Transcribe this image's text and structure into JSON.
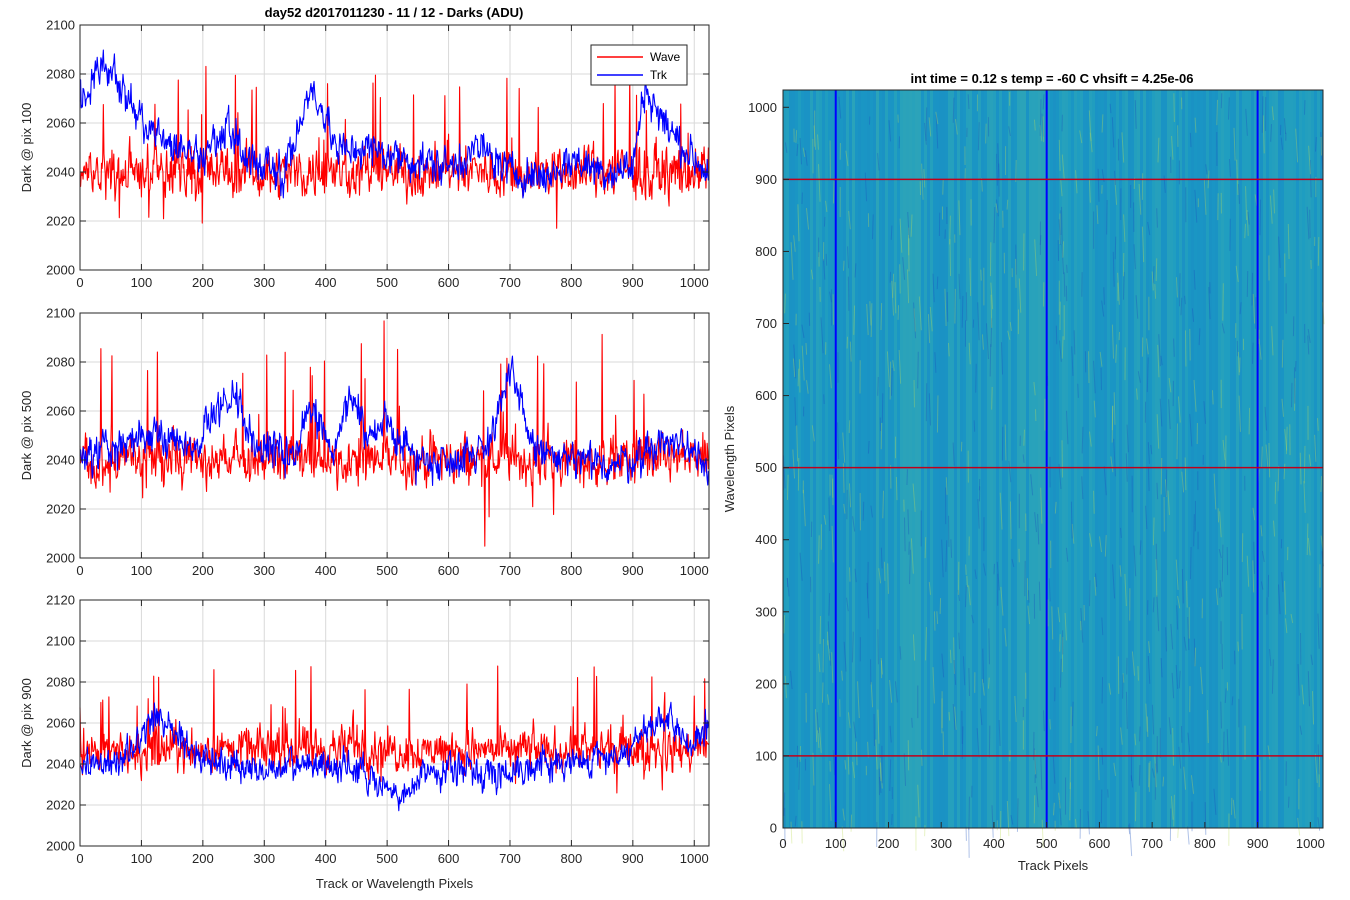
{
  "figure_title": "day52 d2017011230 - 11 / 12 - Darks (ADU)",
  "image_title": "int time = 0.12 s   temp = -60 C   vhsift = 4.25e-06",
  "colors": {
    "wave": "#ff0000",
    "trk": "#0000ff",
    "grid": "#d9d9d9",
    "axis": "#262626"
  },
  "chart_data": [
    {
      "type": "line",
      "ylabel": "Dark @ pix 100",
      "xlabel": "",
      "xlim": [
        0,
        1024
      ],
      "ylim": [
        2000,
        2100
      ],
      "xticks": [
        "0",
        "100",
        "200",
        "300",
        "400",
        "500",
        "600",
        "700",
        "800",
        "900",
        "1000"
      ],
      "yticks": [
        "2000",
        "2020",
        "2040",
        "2060",
        "2080",
        "2100"
      ],
      "grid": true,
      "legend": "top-right",
      "legend_entries": [
        "Wave",
        "Trk"
      ],
      "series": [
        {
          "name": "Wave",
          "color": "#ff0000",
          "baseline": 2040,
          "noise": 9,
          "spike": 40,
          "seed": 11
        },
        {
          "name": "Trk",
          "color": "#0000ff",
          "baseline": 2045,
          "noise": 7,
          "seed": 12,
          "anchors": [
            [
              0,
              2070
            ],
            [
              40,
              2085
            ],
            [
              80,
              2068
            ],
            [
              120,
              2055
            ],
            [
              160,
              2050
            ],
            [
              200,
              2046
            ],
            [
              240,
              2058
            ],
            [
              280,
              2044
            ],
            [
              330,
              2040
            ],
            [
              380,
              2075
            ],
            [
              420,
              2048
            ],
            [
              460,
              2050
            ],
            [
              500,
              2047
            ],
            [
              540,
              2045
            ],
            [
              600,
              2042
            ],
            [
              650,
              2050
            ],
            [
              700,
              2040
            ],
            [
              760,
              2038
            ],
            [
              800,
              2045
            ],
            [
              860,
              2040
            ],
            [
              900,
              2042
            ],
            [
              920,
              2075
            ],
            [
              950,
              2060
            ],
            [
              1000,
              2045
            ],
            [
              1024,
              2040
            ]
          ]
        }
      ]
    },
    {
      "type": "line",
      "ylabel": "Dark @ pix 500",
      "xlabel": "",
      "xlim": [
        0,
        1024
      ],
      "ylim": [
        2000,
        2100
      ],
      "xticks": [
        "0",
        "100",
        "200",
        "300",
        "400",
        "500",
        "600",
        "700",
        "800",
        "900",
        "1000"
      ],
      "yticks": [
        "2000",
        "2020",
        "2040",
        "2060",
        "2080",
        "2100"
      ],
      "grid": true,
      "series": [
        {
          "name": "Wave",
          "color": "#ff0000",
          "baseline": 2040,
          "noise": 9,
          "spike": 45,
          "seed": 21
        },
        {
          "name": "Trk",
          "color": "#0000ff",
          "baseline": 2045,
          "noise": 7,
          "seed": 22,
          "anchors": [
            [
              0,
              2040
            ],
            [
              60,
              2045
            ],
            [
              120,
              2050
            ],
            [
              180,
              2045
            ],
            [
              250,
              2068
            ],
            [
              290,
              2045
            ],
            [
              350,
              2040
            ],
            [
              370,
              2062
            ],
            [
              410,
              2045
            ],
            [
              440,
              2068
            ],
            [
              470,
              2048
            ],
            [
              500,
              2055
            ],
            [
              550,
              2040
            ],
            [
              600,
              2040
            ],
            [
              660,
              2045
            ],
            [
              700,
              2075
            ],
            [
              740,
              2045
            ],
            [
              780,
              2040
            ],
            [
              850,
              2038
            ],
            [
              900,
              2040
            ],
            [
              950,
              2048
            ],
            [
              1000,
              2045
            ],
            [
              1024,
              2038
            ]
          ]
        }
      ]
    },
    {
      "type": "line",
      "ylabel": "Dark @ pix 900",
      "xlabel": "Track or Wavelength Pixels",
      "xlim": [
        0,
        1024
      ],
      "ylim": [
        2000,
        2120
      ],
      "xticks": [
        "0",
        "100",
        "200",
        "300",
        "400",
        "500",
        "600",
        "700",
        "800",
        "900",
        "1000"
      ],
      "yticks": [
        "2000",
        "2020",
        "2040",
        "2060",
        "2080",
        "2100",
        "2120"
      ],
      "grid": true,
      "series": [
        {
          "name": "Wave",
          "color": "#ff0000",
          "baseline": 2047,
          "noise": 9,
          "spike": 40,
          "seed": 31
        },
        {
          "name": "Trk",
          "color": "#0000ff",
          "baseline": 2038,
          "noise": 7,
          "seed": 32,
          "anchors": [
            [
              0,
              2040
            ],
            [
              60,
              2040
            ],
            [
              130,
              2065
            ],
            [
              180,
              2045
            ],
            [
              250,
              2040
            ],
            [
              300,
              2036
            ],
            [
              380,
              2040
            ],
            [
              450,
              2038
            ],
            [
              520,
              2022
            ],
            [
              560,
              2036
            ],
            [
              620,
              2038
            ],
            [
              680,
              2035
            ],
            [
              740,
              2040
            ],
            [
              800,
              2040
            ],
            [
              880,
              2045
            ],
            [
              950,
              2062
            ],
            [
              1000,
              2048
            ],
            [
              1024,
              2060
            ]
          ]
        }
      ]
    },
    {
      "type": "heatmap",
      "title": "int time = 0.12 s   temp = -60 C   vhsift = 4.25e-06",
      "xlabel": "Track Pixels",
      "ylabel": "Wavelength Pixels",
      "xlim": [
        0,
        1024
      ],
      "ylim": [
        0,
        1024
      ],
      "xticks": [
        "0",
        "100",
        "200",
        "300",
        "400",
        "500",
        "600",
        "700",
        "800",
        "900",
        "1000"
      ],
      "yticks": [
        "0",
        "100",
        "200",
        "300",
        "400",
        "500",
        "600",
        "700",
        "800",
        "900",
        "1000"
      ],
      "vertical_markers": [
        100,
        500,
        900
      ],
      "vertical_marker_color": "#0000ff",
      "horizontal_markers": [
        100,
        500,
        900
      ],
      "horizontal_marker_color": "#c0001a",
      "colormap_base": "#1a9bc4"
    }
  ]
}
